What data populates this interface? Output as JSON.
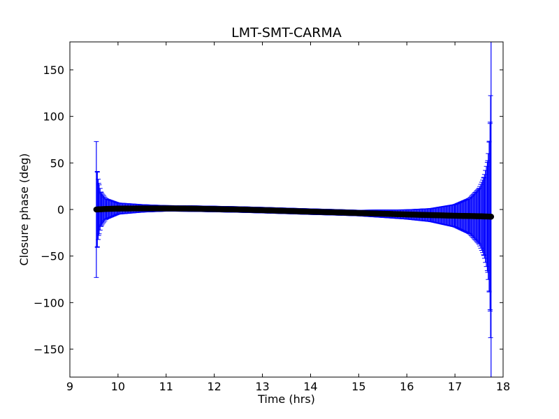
{
  "chart_data": {
    "type": "scatter",
    "title": "LMT-SMT-CARMA",
    "xlabel": "Time (hrs)",
    "ylabel": "Closure phase (deg)",
    "xlim": [
      9,
      18
    ],
    "ylim": [
      -180,
      180
    ],
    "xticks": [
      9,
      10,
      11,
      12,
      13,
      14,
      15,
      16,
      17,
      18
    ],
    "yticks": [
      -150,
      -100,
      -50,
      0,
      50,
      100,
      150
    ],
    "grid": false,
    "series": [
      {
        "marker_color": "#000000",
        "error_bar_color": "#0000ff",
        "x_start": 9.55,
        "x_end": 17.75,
        "points": [
          {
            "x": 9.55,
            "y": 0.0,
            "err": 73
          },
          {
            "x": 9.57,
            "y": 0.1,
            "err": 40
          },
          {
            "x": 9.6,
            "y": 0.2,
            "err": 28
          },
          {
            "x": 9.65,
            "y": 0.3,
            "err": 18
          },
          {
            "x": 9.75,
            "y": 0.6,
            "err": 11
          },
          {
            "x": 10.0,
            "y": 1.0,
            "err": 6
          },
          {
            "x": 10.5,
            "y": 1.2,
            "err": 4
          },
          {
            "x": 11.0,
            "y": 1.2,
            "err": 3
          },
          {
            "x": 11.5,
            "y": 1.0,
            "err": 3
          },
          {
            "x": 12.0,
            "y": 0.5,
            "err": 3
          },
          {
            "x": 12.5,
            "y": 0.0,
            "err": 3
          },
          {
            "x": 13.0,
            "y": -0.7,
            "err": 3
          },
          {
            "x": 13.5,
            "y": -1.5,
            "err": 3
          },
          {
            "x": 14.0,
            "y": -2.3,
            "err": 3
          },
          {
            "x": 14.5,
            "y": -3.0,
            "err": 3
          },
          {
            "x": 15.0,
            "y": -3.8,
            "err": 3
          },
          {
            "x": 15.5,
            "y": -4.5,
            "err": 4
          },
          {
            "x": 16.0,
            "y": -5.3,
            "err": 5
          },
          {
            "x": 16.5,
            "y": -6.0,
            "err": 7
          },
          {
            "x": 17.0,
            "y": -6.7,
            "err": 12
          },
          {
            "x": 17.3,
            "y": -7.0,
            "err": 19
          },
          {
            "x": 17.5,
            "y": -7.2,
            "err": 30
          },
          {
            "x": 17.6,
            "y": -7.4,
            "err": 42
          },
          {
            "x": 17.68,
            "y": -7.5,
            "err": 60
          },
          {
            "x": 17.71,
            "y": -7.6,
            "err": 80
          },
          {
            "x": 17.73,
            "y": -7.6,
            "err": 100
          },
          {
            "x": 17.74,
            "y": -7.7,
            "err": 130
          },
          {
            "x": 17.75,
            "y": -7.7,
            "err": 190
          }
        ]
      }
    ]
  }
}
